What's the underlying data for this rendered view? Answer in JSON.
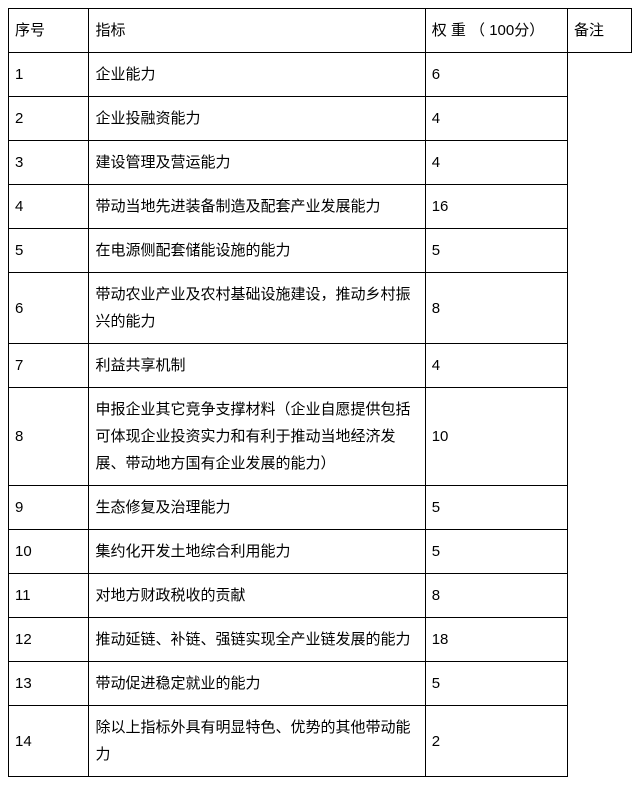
{
  "table": {
    "columns": {
      "seq": "序号",
      "indicator": "指标",
      "weight": "权 重 （ 100分）",
      "remark": "备注"
    },
    "rows": [
      {
        "seq": "1",
        "indicator": "企业能力",
        "weight": "6"
      },
      {
        "seq": "2",
        "indicator": "企业投融资能力",
        "weight": "4"
      },
      {
        "seq": "3",
        "indicator": "建设管理及营运能力",
        "weight": "4"
      },
      {
        "seq": "4",
        "indicator": "带动当地先进装备制造及配套产业发展能力",
        "weight": "16"
      },
      {
        "seq": "5",
        "indicator": "在电源侧配套储能设施的能力",
        "weight": "5"
      },
      {
        "seq": "6",
        "indicator": "带动农业产业及农村基础设施建设，推动乡村振兴的能力",
        "weight": "8"
      },
      {
        "seq": "7",
        "indicator": "利益共享机制",
        "weight": "4"
      },
      {
        "seq": "8",
        "indicator": "申报企业其它竞争支撑材料（企业自愿提供包括可体现企业投资实力和有利于推动当地经济发展、带动地方国有企业发展的能力）",
        "weight": "10"
      },
      {
        "seq": "9",
        "indicator": "生态修复及治理能力",
        "weight": "5"
      },
      {
        "seq": "10",
        "indicator": "集约化开发土地综合利用能力",
        "weight": "5"
      },
      {
        "seq": "11",
        "indicator": "对地方财政税收的贡献",
        "weight": "8"
      },
      {
        "seq": "12",
        "indicator": "推动延链、补链、强链实现全产业链发展的能力",
        "weight": "18"
      },
      {
        "seq": "13",
        "indicator": "带动促进稳定就业的能力",
        "weight": "5"
      },
      {
        "seq": "14",
        "indicator": "除以上指标外具有明显特色、优势的其他带动能力",
        "weight": "2"
      }
    ],
    "style": {
      "border_color": "#000000",
      "background_color": "#ffffff",
      "text_color": "#000000",
      "font_size": 15,
      "line_height": 1.8,
      "col_widths": {
        "seq": 78,
        "indicator": 326,
        "weight": 138,
        "remark": 62
      }
    }
  }
}
